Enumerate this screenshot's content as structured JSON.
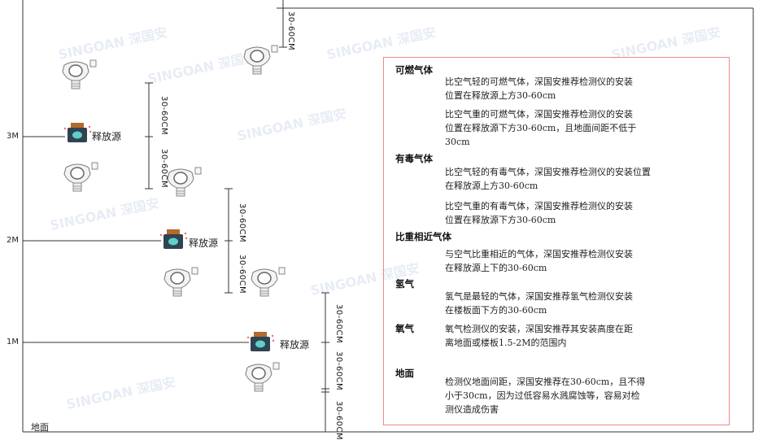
{
  "watermark": "SINGOAN 深国安",
  "levels": {
    "l3": "3M",
    "l2": "2M",
    "l1": "1M"
  },
  "ground_label": "地面",
  "source_label": "释放源",
  "dimension_label": "30-60CM",
  "icons": {
    "detector": "gas-detector-icon",
    "source": "release-source-icon"
  },
  "colors": {
    "notes_border": "#e88888",
    "lines": "#333333"
  },
  "notes": {
    "combustible": {
      "title": "可燃气体",
      "p1": [
        "比空气轻的可燃气体，深国安推荐检测仪的安装",
        "位置在释放源上方30-60cm"
      ],
      "p2": [
        "比空气重的可燃气体，深国安推荐检测仪的安装",
        "位置在释放源下方30-60cm，且地面间距不低于",
        "30cm"
      ]
    },
    "toxic": {
      "title": "有毒气体",
      "p1": [
        "比空气轻的有毒气体，深国安推荐检测仪的安装位置",
        "在释放源上方30-60cm"
      ],
      "p2": [
        "比空气重的有毒气体，深国安推荐检测仪的安装",
        "位置在释放源下方30-60cm"
      ]
    },
    "similar": {
      "title": "比重相近气体",
      "p1": [
        "与空气比重相近的气体，深国安推荐检测仪安装",
        "在释放源上下的30-60cm"
      ]
    },
    "hydrogen": {
      "title": "氢气",
      "p1": [
        "氢气是最轻的气体，深国安推荐氢气检测仪安装",
        "在楼板面下方的30-60cm"
      ]
    },
    "oxygen": {
      "title": "氧气",
      "p1": [
        "氧气检测仪的安装，深国安推荐其安装高度在距",
        "离地面或楼板1.5-2M的范围内"
      ]
    },
    "ground": {
      "title": "地面",
      "p1": [
        "检测仪地面间距，深国安推荐在30-60cm，且不得",
        "小于30cm，因为过低容易水溅腐蚀等，容易对检",
        "测仪造成伤害"
      ]
    }
  }
}
